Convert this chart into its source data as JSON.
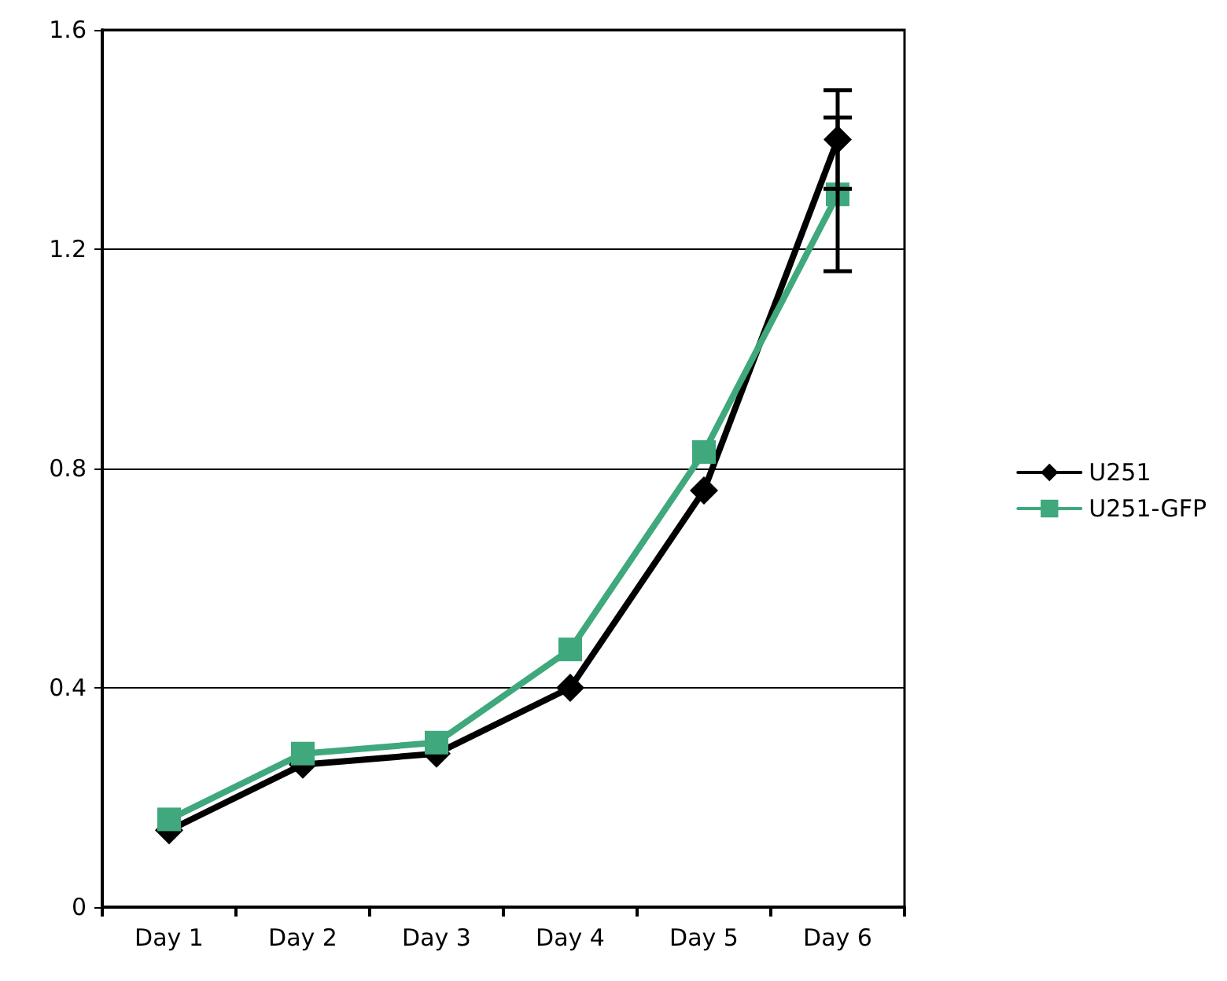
{
  "chart_data": {
    "type": "line",
    "categories": [
      "Day 1",
      "Day 2",
      "Day 3",
      "Day 4",
      "Day 5",
      "Day 6"
    ],
    "series": [
      {
        "name": "U251",
        "color": "#000000",
        "marker": "diamond",
        "values": [
          0.14,
          0.26,
          0.28,
          0.4,
          0.76,
          1.4
        ],
        "errors": [
          null,
          null,
          null,
          null,
          null,
          0.09
        ]
      },
      {
        "name": "U251-GFP",
        "color": "#3fa87c",
        "marker": "square",
        "values": [
          0.16,
          0.28,
          0.3,
          0.47,
          0.83,
          1.3
        ],
        "errors": [
          null,
          null,
          null,
          null,
          null,
          0.14
        ]
      }
    ],
    "ylim": [
      0,
      1.6
    ],
    "yticks": [
      0,
      0.4,
      0.8,
      1.2,
      1.6
    ],
    "grid": "y",
    "legend": "right",
    "line_style": "solid"
  }
}
